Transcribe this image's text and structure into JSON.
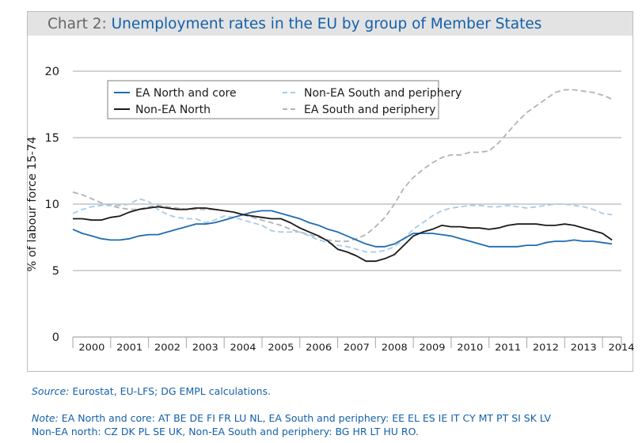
{
  "title": {
    "prefix": "Chart 2:",
    "main": "Unemployment rates in the EU by group of Member States"
  },
  "source": {
    "label": "Source:",
    "text": "Eurostat, EU-LFS; DG EMPL calculations."
  },
  "note": {
    "label": "Note:",
    "line1": "EA North and core: AT BE DE FI FR LU NL, EA South and periphery: EE EL ES IE IT CY MT PT SI SK LV",
    "line2": "Non-EA north: CZ DK PL SE UK, Non-EA South and periphery: BG HR LT HU RO."
  },
  "colors": {
    "ea_north": "#1f6cb0",
    "non_ea_north": "#1a1a1a",
    "non_ea_south": "#a8cbe6",
    "ea_south": "#b3b3b3",
    "grid": "#a6a6a6"
  },
  "chart_data": {
    "type": "line",
    "ylabel": "% of labour force 15-74",
    "ylim": [
      0,
      20
    ],
    "yticks": [
      "0",
      "5",
      "10",
      "15",
      "20"
    ],
    "categories": [
      "2000",
      "2001",
      "2002",
      "2003",
      "2004",
      "2005",
      "2006",
      "2007",
      "2008",
      "2009",
      "2010",
      "2011",
      "2012",
      "2013",
      "2014"
    ],
    "grid": true,
    "legend_position": "top-left",
    "series": [
      {
        "name": "EA North and core",
        "style": "solid",
        "color": "#1f6cb0",
        "x": [
          2000.0,
          2000.25,
          2000.5,
          2000.75,
          2001.0,
          2001.25,
          2001.5,
          2001.75,
          2002.0,
          2002.25,
          2002.5,
          2002.75,
          2003.0,
          2003.25,
          2003.5,
          2003.75,
          2004.0,
          2004.25,
          2004.5,
          2004.75,
          2005.0,
          2005.25,
          2005.5,
          2005.75,
          2006.0,
          2006.25,
          2006.5,
          2006.75,
          2007.0,
          2007.25,
          2007.5,
          2007.75,
          2008.0,
          2008.25,
          2008.5,
          2008.75,
          2009.0,
          2009.25,
          2009.5,
          2009.75,
          2010.0,
          2010.25,
          2010.5,
          2010.75,
          2011.0,
          2011.25,
          2011.5,
          2011.75,
          2012.0,
          2012.25,
          2012.5,
          2012.75,
          2013.0,
          2013.25,
          2013.5,
          2013.75,
          2014.0,
          2014.25
        ],
        "y": [
          8.1,
          7.8,
          7.6,
          7.4,
          7.3,
          7.3,
          7.4,
          7.6,
          7.7,
          7.7,
          7.9,
          8.1,
          8.3,
          8.5,
          8.5,
          8.6,
          8.8,
          9.0,
          9.2,
          9.4,
          9.5,
          9.5,
          9.3,
          9.1,
          8.9,
          8.6,
          8.4,
          8.1,
          7.9,
          7.6,
          7.3,
          7.0,
          6.8,
          6.8,
          7.0,
          7.4,
          7.8,
          7.8,
          7.8,
          7.7,
          7.6,
          7.4,
          7.2,
          7.0,
          6.8,
          6.8,
          6.8,
          6.8,
          6.9,
          6.9,
          7.1,
          7.2,
          7.2,
          7.3,
          7.2,
          7.2,
          7.1,
          7.0
        ]
      },
      {
        "name": "Non-EA North",
        "style": "solid",
        "color": "#1a1a1a",
        "x": [
          2000.0,
          2000.25,
          2000.5,
          2000.75,
          2001.0,
          2001.25,
          2001.5,
          2001.75,
          2002.0,
          2002.25,
          2002.5,
          2002.75,
          2003.0,
          2003.25,
          2003.5,
          2003.75,
          2004.0,
          2004.25,
          2004.5,
          2004.75,
          2005.0,
          2005.25,
          2005.5,
          2005.75,
          2006.0,
          2006.25,
          2006.5,
          2006.75,
          2007.0,
          2007.25,
          2007.5,
          2007.75,
          2008.0,
          2008.25,
          2008.5,
          2008.75,
          2009.0,
          2009.25,
          2009.5,
          2009.75,
          2010.0,
          2010.25,
          2010.5,
          2010.75,
          2011.0,
          2011.25,
          2011.5,
          2011.75,
          2012.0,
          2012.25,
          2012.5,
          2012.75,
          2013.0,
          2013.25,
          2013.5,
          2013.75,
          2014.0,
          2014.25
        ],
        "y": [
          8.9,
          8.9,
          8.8,
          8.8,
          9.0,
          9.1,
          9.4,
          9.6,
          9.7,
          9.8,
          9.7,
          9.6,
          9.6,
          9.7,
          9.7,
          9.6,
          9.5,
          9.4,
          9.2,
          9.1,
          9.0,
          8.9,
          8.9,
          8.6,
          8.2,
          7.9,
          7.6,
          7.2,
          6.6,
          6.4,
          6.1,
          5.7,
          5.7,
          5.9,
          6.2,
          6.9,
          7.6,
          7.9,
          8.1,
          8.4,
          8.3,
          8.3,
          8.2,
          8.2,
          8.1,
          8.2,
          8.4,
          8.5,
          8.5,
          8.5,
          8.4,
          8.4,
          8.5,
          8.4,
          8.2,
          8.0,
          7.8,
          7.3
        ]
      },
      {
        "name": "Non-EA South and periphery",
        "style": "dashed",
        "color": "#a8cbe6",
        "x": [
          2000.0,
          2000.25,
          2000.5,
          2000.75,
          2001.0,
          2001.25,
          2001.5,
          2001.75,
          2002.0,
          2002.25,
          2002.5,
          2002.75,
          2003.0,
          2003.25,
          2003.5,
          2003.75,
          2004.0,
          2004.25,
          2004.5,
          2004.75,
          2005.0,
          2005.25,
          2005.5,
          2005.75,
          2006.0,
          2006.25,
          2006.5,
          2006.75,
          2007.0,
          2007.25,
          2007.5,
          2007.75,
          2008.0,
          2008.25,
          2008.5,
          2008.75,
          2009.0,
          2009.25,
          2009.5,
          2009.75,
          2010.0,
          2010.25,
          2010.5,
          2010.75,
          2011.0,
          2011.25,
          2011.5,
          2011.75,
          2012.0,
          2012.25,
          2012.5,
          2012.75,
          2013.0,
          2013.25,
          2013.5,
          2013.75,
          2014.0,
          2014.25
        ],
        "y": [
          9.3,
          9.6,
          9.8,
          9.9,
          9.9,
          9.9,
          10.0,
          10.4,
          10.2,
          9.6,
          9.2,
          9.0,
          8.9,
          8.9,
          8.6,
          8.8,
          9.1,
          9.0,
          8.8,
          8.6,
          8.4,
          8.0,
          7.9,
          7.9,
          7.9,
          7.6,
          7.3,
          7.1,
          6.9,
          6.8,
          6.6,
          6.4,
          6.4,
          6.5,
          6.8,
          7.4,
          8.1,
          8.6,
          9.1,
          9.5,
          9.7,
          9.8,
          9.9,
          9.9,
          9.8,
          9.8,
          9.9,
          9.8,
          9.7,
          9.8,
          9.9,
          10.0,
          10.0,
          9.9,
          9.8,
          9.6,
          9.3,
          9.2
        ]
      },
      {
        "name": "EA South and periphery",
        "style": "dashed",
        "color": "#b3b3b3",
        "x": [
          2000.0,
          2000.25,
          2000.5,
          2000.75,
          2001.0,
          2001.25,
          2001.5,
          2001.75,
          2002.0,
          2002.25,
          2002.5,
          2002.75,
          2003.0,
          2003.25,
          2003.5,
          2003.75,
          2004.0,
          2004.25,
          2004.5,
          2004.75,
          2005.0,
          2005.25,
          2005.5,
          2005.75,
          2006.0,
          2006.25,
          2006.5,
          2006.75,
          2007.0,
          2007.25,
          2007.5,
          2007.75,
          2008.0,
          2008.25,
          2008.5,
          2008.75,
          2009.0,
          2009.25,
          2009.5,
          2009.75,
          2010.0,
          2010.25,
          2010.5,
          2010.75,
          2011.0,
          2011.25,
          2011.5,
          2011.75,
          2012.0,
          2012.25,
          2012.5,
          2012.75,
          2013.0,
          2013.25,
          2013.5,
          2013.75,
          2014.0,
          2014.25
        ],
        "y": [
          10.9,
          10.7,
          10.4,
          10.1,
          9.9,
          9.7,
          9.6,
          9.6,
          9.8,
          9.9,
          9.8,
          9.7,
          9.6,
          9.6,
          9.6,
          9.6,
          9.5,
          9.4,
          9.2,
          9.0,
          8.8,
          8.6,
          8.4,
          8.1,
          7.9,
          7.7,
          7.5,
          7.3,
          7.2,
          7.2,
          7.4,
          7.7,
          8.3,
          9.0,
          10.0,
          11.2,
          12.0,
          12.6,
          13.1,
          13.5,
          13.7,
          13.7,
          13.9,
          13.9,
          14.0,
          14.6,
          15.4,
          16.2,
          16.9,
          17.4,
          17.9,
          18.4,
          18.6,
          18.6,
          18.5,
          18.4,
          18.2,
          17.9
        ]
      }
    ]
  }
}
